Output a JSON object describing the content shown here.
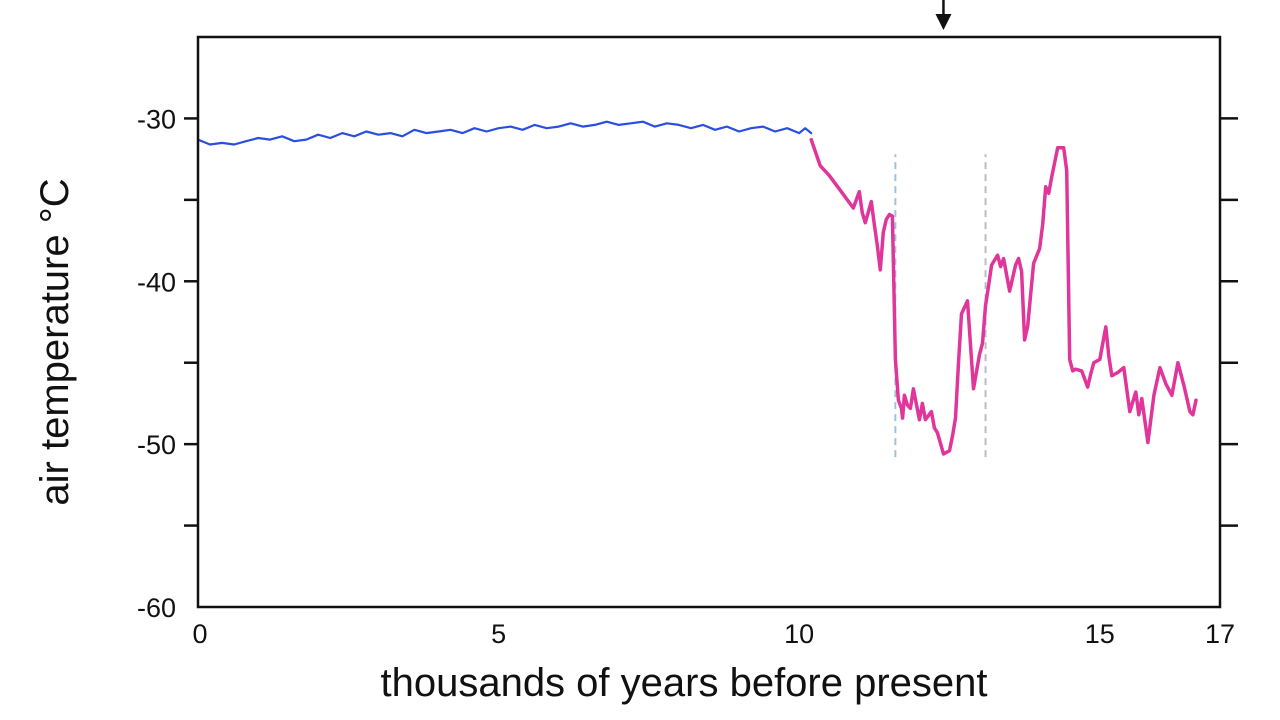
{
  "chart_data": {
    "type": "line",
    "title": "",
    "xlabel": "thousands of years before present",
    "ylabel": "air temperature °C",
    "xlim": [
      0,
      17
    ],
    "ylim": [
      -60,
      -25
    ],
    "xticks": [
      0,
      5,
      10,
      15,
      17
    ],
    "xtick_labels": [
      "0",
      "5",
      "10",
      "15",
      "17"
    ],
    "yticks": [
      -30,
      -40,
      -50,
      -60
    ],
    "ytick_labels": [
      "-30",
      "-40",
      "-50",
      "-60"
    ],
    "minor_yticks": [
      -35,
      -45,
      -55
    ],
    "grid": false,
    "series": [
      {
        "color": "#2a4fe0",
        "x": [
          0,
          0.2,
          0.4,
          0.6,
          0.8,
          1.0,
          1.2,
          1.4,
          1.6,
          1.8,
          2.0,
          2.2,
          2.4,
          2.6,
          2.8,
          3.0,
          3.2,
          3.4,
          3.6,
          3.8,
          4.0,
          4.2,
          4.4,
          4.6,
          4.8,
          5.0,
          5.2,
          5.4,
          5.6,
          5.8,
          6.0,
          6.2,
          6.4,
          6.6,
          6.8,
          7.0,
          7.2,
          7.4,
          7.6,
          7.8,
          8.0,
          8.2,
          8.4,
          8.6,
          8.8,
          9.0,
          9.2,
          9.4,
          9.6,
          9.8,
          10.0,
          10.1,
          10.2
        ],
        "y": [
          -31.3,
          -31.6,
          -31.5,
          -31.6,
          -31.4,
          -31.2,
          -31.3,
          -31.1,
          -31.4,
          -31.3,
          -31.0,
          -31.2,
          -30.9,
          -31.1,
          -30.8,
          -31.0,
          -30.9,
          -31.1,
          -30.7,
          -30.9,
          -30.8,
          -30.7,
          -30.9,
          -30.6,
          -30.8,
          -30.6,
          -30.5,
          -30.7,
          -30.4,
          -30.6,
          -30.5,
          -30.3,
          -30.5,
          -30.4,
          -30.2,
          -30.4,
          -30.3,
          -30.2,
          -30.5,
          -30.3,
          -30.4,
          -30.6,
          -30.4,
          -30.7,
          -30.5,
          -30.8,
          -30.6,
          -30.5,
          -30.8,
          -30.6,
          -30.9,
          -30.6,
          -30.9
        ]
      },
      {
        "color": "#e0369b",
        "x": [
          10.2,
          10.35,
          10.5,
          10.7,
          10.9,
          11.0,
          11.05,
          11.1,
          11.2,
          11.25,
          11.3,
          11.35,
          11.4,
          11.45,
          11.5,
          11.55,
          11.6,
          11.65,
          11.7,
          11.72,
          11.75,
          11.8,
          11.85,
          11.9,
          12.0,
          12.05,
          12.1,
          12.2,
          12.25,
          12.3,
          12.4,
          12.5,
          12.55,
          12.6,
          12.65,
          12.7,
          12.8,
          12.9,
          13.0,
          13.05,
          13.1,
          13.15,
          13.2,
          13.3,
          13.35,
          13.4,
          13.5,
          13.6,
          13.65,
          13.7,
          13.75,
          13.8,
          13.9,
          14.0,
          14.05,
          14.1,
          14.15,
          14.2,
          14.3,
          14.4,
          14.45,
          14.5,
          14.55,
          14.6,
          14.7,
          14.8,
          14.85,
          14.9,
          15.0,
          15.1,
          15.15,
          15.2,
          15.3,
          15.4,
          15.5,
          15.6,
          15.65,
          15.7,
          15.8,
          15.9,
          16.0,
          16.05,
          16.1,
          16.2,
          16.3,
          16.4,
          16.45,
          16.5,
          16.55,
          16.6
        ],
        "y": [
          -31.3,
          -32.9,
          -33.5,
          -34.5,
          -35.5,
          -34.5,
          -35.8,
          -36.4,
          -35.1,
          -36.5,
          -37.8,
          -39.3,
          -37.0,
          -36.2,
          -35.9,
          -36.0,
          -44.8,
          -47.3,
          -47.8,
          -48.4,
          -47.0,
          -47.6,
          -47.8,
          -46.6,
          -48.5,
          -47.5,
          -48.5,
          -48.0,
          -49.0,
          -49.3,
          -50.6,
          -50.4,
          -49.5,
          -48.4,
          -45.0,
          -42.0,
          -41.2,
          -46.6,
          -44.5,
          -43.8,
          -41.5,
          -40.3,
          -39.0,
          -38.4,
          -39.1,
          -38.6,
          -40.6,
          -39.0,
          -38.6,
          -39.4,
          -43.6,
          -42.8,
          -38.9,
          -38.0,
          -36.5,
          -34.2,
          -34.6,
          -33.6,
          -31.8,
          -31.8,
          -33.2,
          -44.8,
          -45.5,
          -45.4,
          -45.5,
          -46.5,
          -45.7,
          -45.0,
          -44.8,
          -42.8,
          -44.6,
          -45.8,
          -45.6,
          -45.3,
          -48.0,
          -46.8,
          -48.2,
          -47.2,
          -49.9,
          -47.0,
          -45.3,
          -45.8,
          -46.3,
          -47.0,
          -45.0,
          -46.4,
          -47.2,
          -48.0,
          -48.2,
          -47.3
        ]
      }
    ],
    "reference_lines": [
      {
        "x": 11.6,
        "y_range": [
          -50.8,
          -32.2
        ],
        "color": "#9ec4dc",
        "style": "dashed"
      },
      {
        "x": 13.1,
        "y_range": [
          -50.8,
          -32.2
        ],
        "color": "#b9bec6",
        "style": "dashed"
      }
    ],
    "marker_arrow": {
      "x": 12.4,
      "direction": "down"
    }
  }
}
